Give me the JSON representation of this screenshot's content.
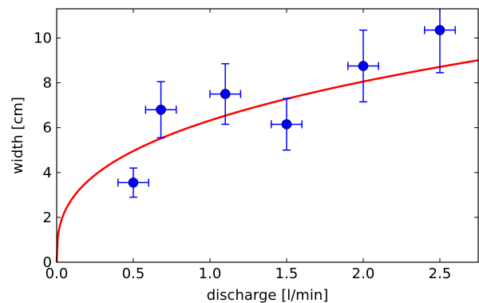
{
  "chart_data": {
    "type": "scatter",
    "title": "",
    "xlabel": "discharge [l/min]",
    "ylabel": "width [cm]",
    "xlim": [
      0.0,
      2.75
    ],
    "ylim": [
      0,
      11.3
    ],
    "xticks": [
      0.0,
      0.5,
      1.0,
      1.5,
      2.0,
      2.5
    ],
    "xtick_labels": [
      "0.0",
      "0.5",
      "1.0",
      "1.5",
      "2.0",
      "2.5"
    ],
    "yticks": [
      0,
      2,
      4,
      6,
      8,
      10
    ],
    "ytick_labels": [
      "0",
      "2",
      "4",
      "6",
      "8",
      "10"
    ],
    "grid": false,
    "legend": "none",
    "series": [
      {
        "type": "errorbar",
        "color": "#0000ff",
        "points": [
          {
            "x": 0.5,
            "y": 3.55,
            "xerr": 0.1,
            "yerr_low": 0.65,
            "yerr_high": 0.65
          },
          {
            "x": 0.68,
            "y": 6.8,
            "xerr": 0.1,
            "yerr_low": 1.25,
            "yerr_high": 1.25
          },
          {
            "x": 1.1,
            "y": 7.5,
            "xerr": 0.1,
            "yerr_low": 1.35,
            "yerr_high": 1.35
          },
          {
            "x": 1.5,
            "y": 6.15,
            "xerr": 0.1,
            "yerr_low": 1.15,
            "yerr_high": 1.15
          },
          {
            "x": 2.0,
            "y": 8.75,
            "xerr": 0.1,
            "yerr_low": 1.6,
            "yerr_high": 1.6
          },
          {
            "x": 2.5,
            "y": 10.35,
            "xerr": 0.1,
            "yerr_low": 1.9,
            "yerr_high": 1.9
          }
        ]
      },
      {
        "type": "line",
        "color": "#ff0000",
        "function": "power",
        "coefficient": 6.32,
        "exponent": 0.35
      }
    ]
  }
}
